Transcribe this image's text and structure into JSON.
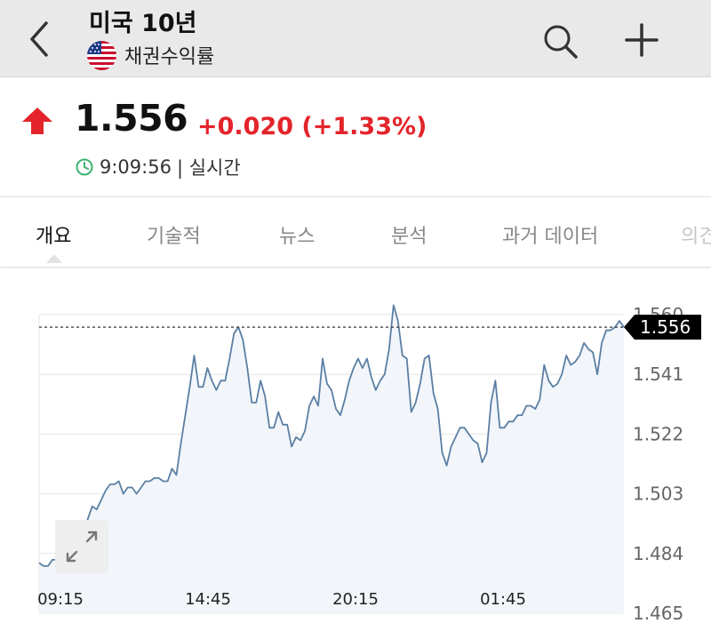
{
  "header": {
    "title": "미국 10년",
    "subtitle": "채권수익률",
    "flag_icon": "us-flag-icon",
    "back_icon": "chevron-left-icon",
    "search_icon": "search-icon",
    "add_icon": "plus-icon"
  },
  "quote": {
    "price": "1.556",
    "change": "+0.020 (+1.33%)",
    "time": "9:09:56",
    "status": "| 실시간",
    "change_color": "#e3242b"
  },
  "tabs": [
    {
      "label": "개요",
      "active": true
    },
    {
      "label": "기술적"
    },
    {
      "label": "뉴스"
    },
    {
      "label": "분석"
    },
    {
      "label": "과거 데이터"
    },
    {
      "label": "의견"
    }
  ],
  "chart_data": {
    "type": "area",
    "line_color": "#5b7fa3",
    "fill_color": "#f2f6fb",
    "current_value": 1.556,
    "current_label": "1.556",
    "ylim": [
      1.465,
      1.56
    ],
    "yticks": [
      "1.560",
      "1.541",
      "1.522",
      "1.503",
      "1.484",
      "1.465"
    ],
    "xticks": [
      "09:15",
      "14:45",
      "20:15",
      "01:45"
    ],
    "values": [
      1.481,
      1.48,
      1.48,
      1.482,
      1.482,
      1.481,
      1.478,
      1.483,
      1.485,
      1.487,
      1.491,
      1.495,
      1.499,
      1.498,
      1.501,
      1.504,
      1.506,
      1.506,
      1.507,
      1.503,
      1.505,
      1.505,
      1.503,
      1.505,
      1.507,
      1.507,
      1.508,
      1.508,
      1.507,
      1.507,
      1.511,
      1.509,
      1.519,
      1.528,
      1.537,
      1.547,
      1.537,
      1.537,
      1.543,
      1.539,
      1.536,
      1.539,
      1.539,
      1.546,
      1.554,
      1.556,
      1.552,
      1.543,
      1.532,
      1.532,
      1.539,
      1.534,
      1.524,
      1.524,
      1.529,
      1.525,
      1.525,
      1.518,
      1.521,
      1.52,
      1.523,
      1.531,
      1.534,
      1.531,
      1.546,
      1.538,
      1.536,
      1.53,
      1.528,
      1.533,
      1.539,
      1.543,
      1.546,
      1.543,
      1.546,
      1.54,
      1.536,
      1.539,
      1.541,
      1.549,
      1.563,
      1.558,
      1.547,
      1.546,
      1.529,
      1.532,
      1.538,
      1.546,
      1.547,
      1.535,
      1.53,
      1.516,
      1.512,
      1.518,
      1.521,
      1.524,
      1.524,
      1.522,
      1.52,
      1.519,
      1.513,
      1.516,
      1.532,
      1.539,
      1.524,
      1.524,
      1.526,
      1.526,
      1.528,
      1.528,
      1.531,
      1.531,
      1.53,
      1.533,
      1.544,
      1.539,
      1.537,
      1.538,
      1.541,
      1.547,
      1.544,
      1.545,
      1.547,
      1.551,
      1.549,
      1.548,
      1.541,
      1.551,
      1.555,
      1.555,
      1.556,
      1.558,
      1.556
    ]
  }
}
